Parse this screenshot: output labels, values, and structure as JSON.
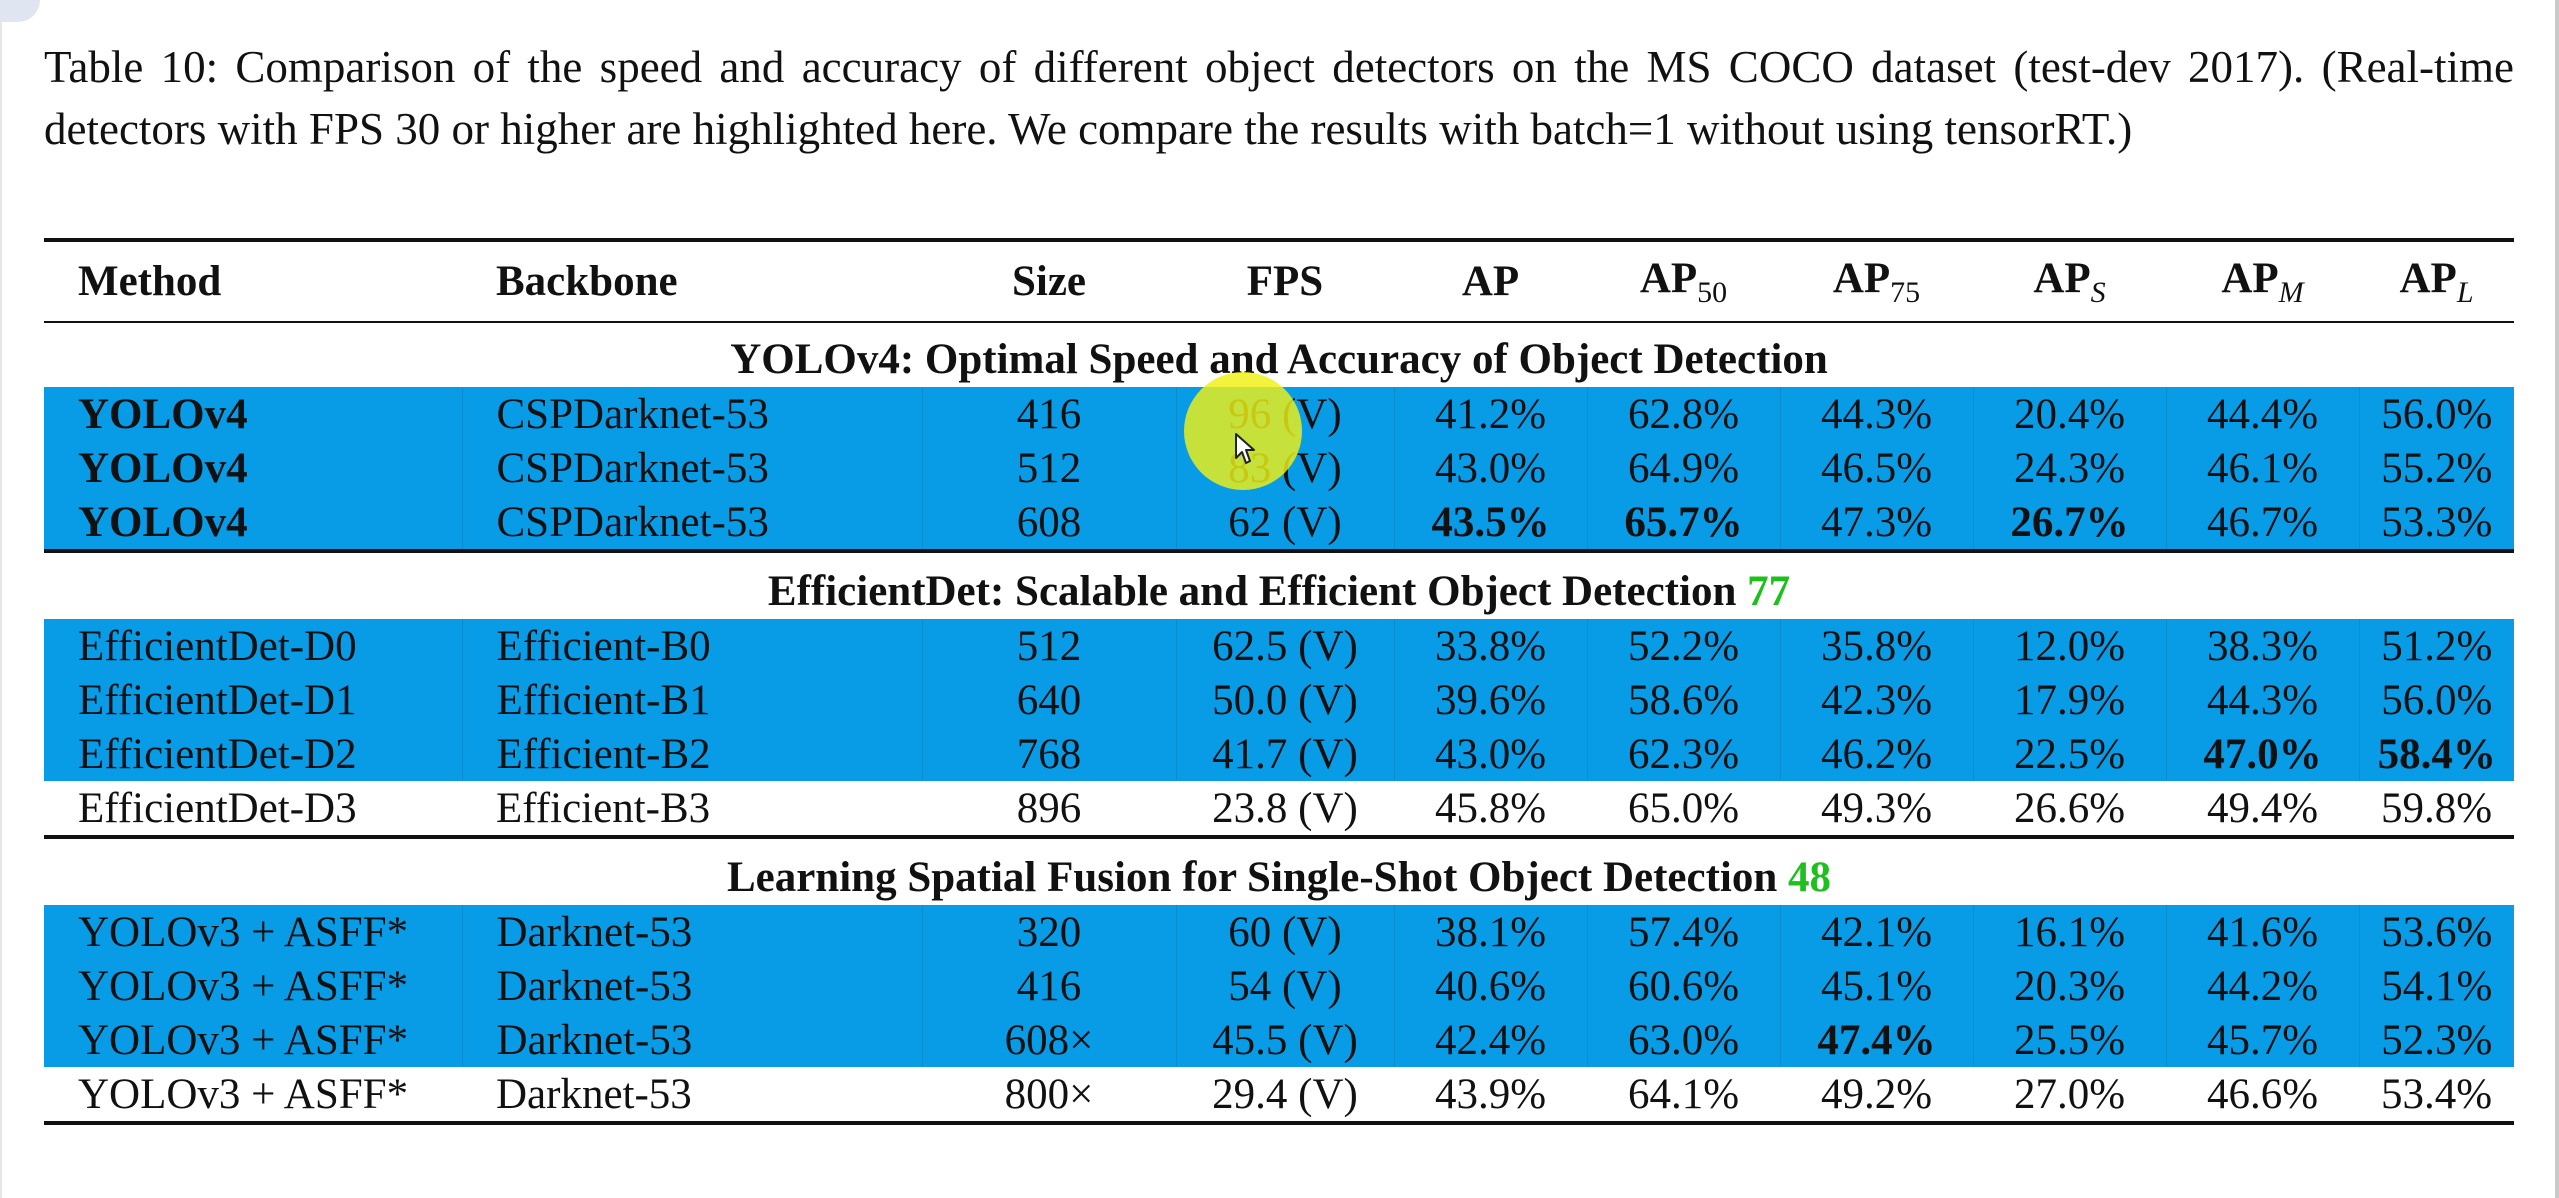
{
  "caption": "Table 10: Comparison of the speed and accuracy of different object detectors on the MS COCO dataset (test-dev 2017). (Real-time detectors with FPS 30 or higher are highlighted here.  We compare the results with batch=1 without using tensorRT.)",
  "table": {
    "headers": {
      "method": "Method",
      "backbone": "Backbone",
      "size": "Size",
      "fps": "FPS",
      "ap": "AP",
      "ap50": {
        "base": "AP",
        "sub": "50"
      },
      "ap75": {
        "base": "AP",
        "sub": "75"
      },
      "aps": {
        "base": "AP",
        "sub": "S"
      },
      "apm": {
        "base": "AP",
        "sub": "M"
      },
      "apl": {
        "base": "AP",
        "sub": "L"
      }
    },
    "sections": [
      {
        "title": "YOLOv4: Optimal Speed and Accuracy of Object Detection",
        "ref": "",
        "rows": [
          {
            "method": "YOLOv4",
            "backbone": "CSPDarknet-53",
            "size": "416",
            "fps": "96 (V)",
            "ap": "41.2%",
            "ap50": "62.8%",
            "ap75": "44.3%",
            "aps": "20.4%",
            "apm": "44.4%",
            "apl": "56.0%"
          },
          {
            "method": "YOLOv4",
            "backbone": "CSPDarknet-53",
            "size": "512",
            "fps": "83 (V)",
            "ap": "43.0%",
            "ap50": "64.9%",
            "ap75": "46.5%",
            "aps": "24.3%",
            "apm": "46.1%",
            "apl": "55.2%"
          },
          {
            "method": "YOLOv4",
            "backbone": "CSPDarknet-53",
            "size": "608",
            "fps": "62 (V)",
            "ap": "43.5%",
            "ap50": "65.7%",
            "ap75": "47.3%",
            "aps": "26.7%",
            "apm": "46.7%",
            "apl": "53.3%"
          }
        ]
      },
      {
        "title": "EfficientDet: Scalable and Efficient Object Detection ",
        "ref": "77",
        "rows": [
          {
            "method": "EfficientDet-D0",
            "backbone": "Efficient-B0",
            "size": "512",
            "fps": "62.5 (V)",
            "ap": "33.8%",
            "ap50": "52.2%",
            "ap75": "35.8%",
            "aps": "12.0%",
            "apm": "38.3%",
            "apl": "51.2%"
          },
          {
            "method": "EfficientDet-D1",
            "backbone": "Efficient-B1",
            "size": "640",
            "fps": "50.0 (V)",
            "ap": "39.6%",
            "ap50": "58.6%",
            "ap75": "42.3%",
            "aps": "17.9%",
            "apm": "44.3%",
            "apl": "56.0%"
          },
          {
            "method": "EfficientDet-D2",
            "backbone": "Efficient-B2",
            "size": "768",
            "fps": "41.7 (V)",
            "ap": "43.0%",
            "ap50": "62.3%",
            "ap75": "46.2%",
            "aps": "22.5%",
            "apm": "47.0%",
            "apl": "58.4%"
          },
          {
            "method": "EfficientDet-D3",
            "backbone": "Efficient-B3",
            "size": "896",
            "fps": "23.8 (V)",
            "ap": "45.8%",
            "ap50": "65.0%",
            "ap75": "49.3%",
            "aps": "26.6%",
            "apm": "49.4%",
            "apl": "59.8%"
          }
        ]
      },
      {
        "title": "Learning Spatial Fusion for Single-Shot Object Detection ",
        "ref": "48",
        "rows": [
          {
            "method": "YOLOv3 + ASFF*",
            "backbone": "Darknet-53",
            "size": "320",
            "fps": "60 (V)",
            "ap": "38.1%",
            "ap50": "57.4%",
            "ap75": "42.1%",
            "aps": "16.1%",
            "apm": "41.6%",
            "apl": "53.6%"
          },
          {
            "method": "YOLOv3 + ASFF*",
            "backbone": "Darknet-53",
            "size": "416",
            "fps": "54 (V)",
            "ap": "40.6%",
            "ap50": "60.6%",
            "ap75": "45.1%",
            "aps": "20.3%",
            "apm": "44.2%",
            "apl": "54.1%"
          },
          {
            "method": "YOLOv3 + ASFF*",
            "backbone": "Darknet-53",
            "size": "608×",
            "fps": "45.5 (V)",
            "ap": "42.4%",
            "ap50": "63.0%",
            "ap75": "47.4%",
            "aps": "25.5%",
            "apm": "45.7%",
            "apl": "52.3%"
          },
          {
            "method": "YOLOv3 + ASFF*",
            "backbone": "Darknet-53",
            "size": "800×",
            "fps": "29.4 (V)",
            "ap": "43.9%",
            "ap50": "64.1%",
            "ap75": "49.2%",
            "aps": "27.0%",
            "apm": "46.6%",
            "apl": "53.4%"
          }
        ]
      }
    ]
  },
  "colors": {
    "highlight_row": "#089be6",
    "reference_link": "#1fbf1f",
    "cursor_highlight": "#f0f014"
  },
  "icons": {
    "cursor": "mouse-pointer-icon"
  }
}
